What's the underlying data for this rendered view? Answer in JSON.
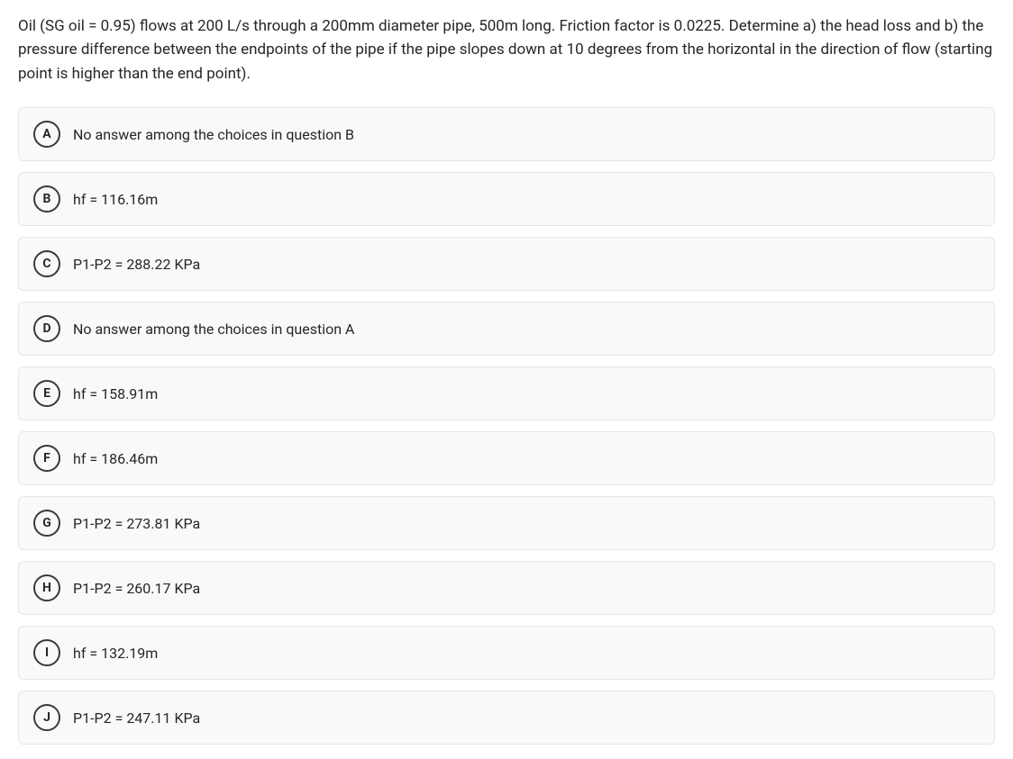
{
  "question": "Oil (SG oil = 0.95) flows at 200 L/s through a 200mm diameter pipe, 500m long. Friction factor is 0.0225. Determine a) the head loss and b) the pressure difference between the endpoints of the pipe if the pipe slopes down at 10 degrees from the horizontal in the direction of flow (starting point is higher than the end point).",
  "options": [
    {
      "letter": "A",
      "text": "No answer among the choices in question B"
    },
    {
      "letter": "B",
      "text": "hf = 116.16m"
    },
    {
      "letter": "C",
      "text": "P1-P2 = 288.22 KPa"
    },
    {
      "letter": "D",
      "text": "No answer among the choices in question A"
    },
    {
      "letter": "E",
      "text": "hf = 158.91m"
    },
    {
      "letter": "F",
      "text": "hf = 186.46m"
    },
    {
      "letter": "G",
      "text": "P1-P2 = 273.81 KPa"
    },
    {
      "letter": "H",
      "text": "P1-P2 = 260.17 KPa"
    },
    {
      "letter": "I",
      "text": "hf = 132.19m"
    },
    {
      "letter": "J",
      "text": "P1-P2 = 247.11 KPa"
    }
  ],
  "colors": {
    "background": "#ffffff",
    "rowBackground": "#f9f9fa",
    "rowBorder": "#e6e6e8",
    "text": "#262626",
    "circleBorder": "#3a3a3a"
  }
}
